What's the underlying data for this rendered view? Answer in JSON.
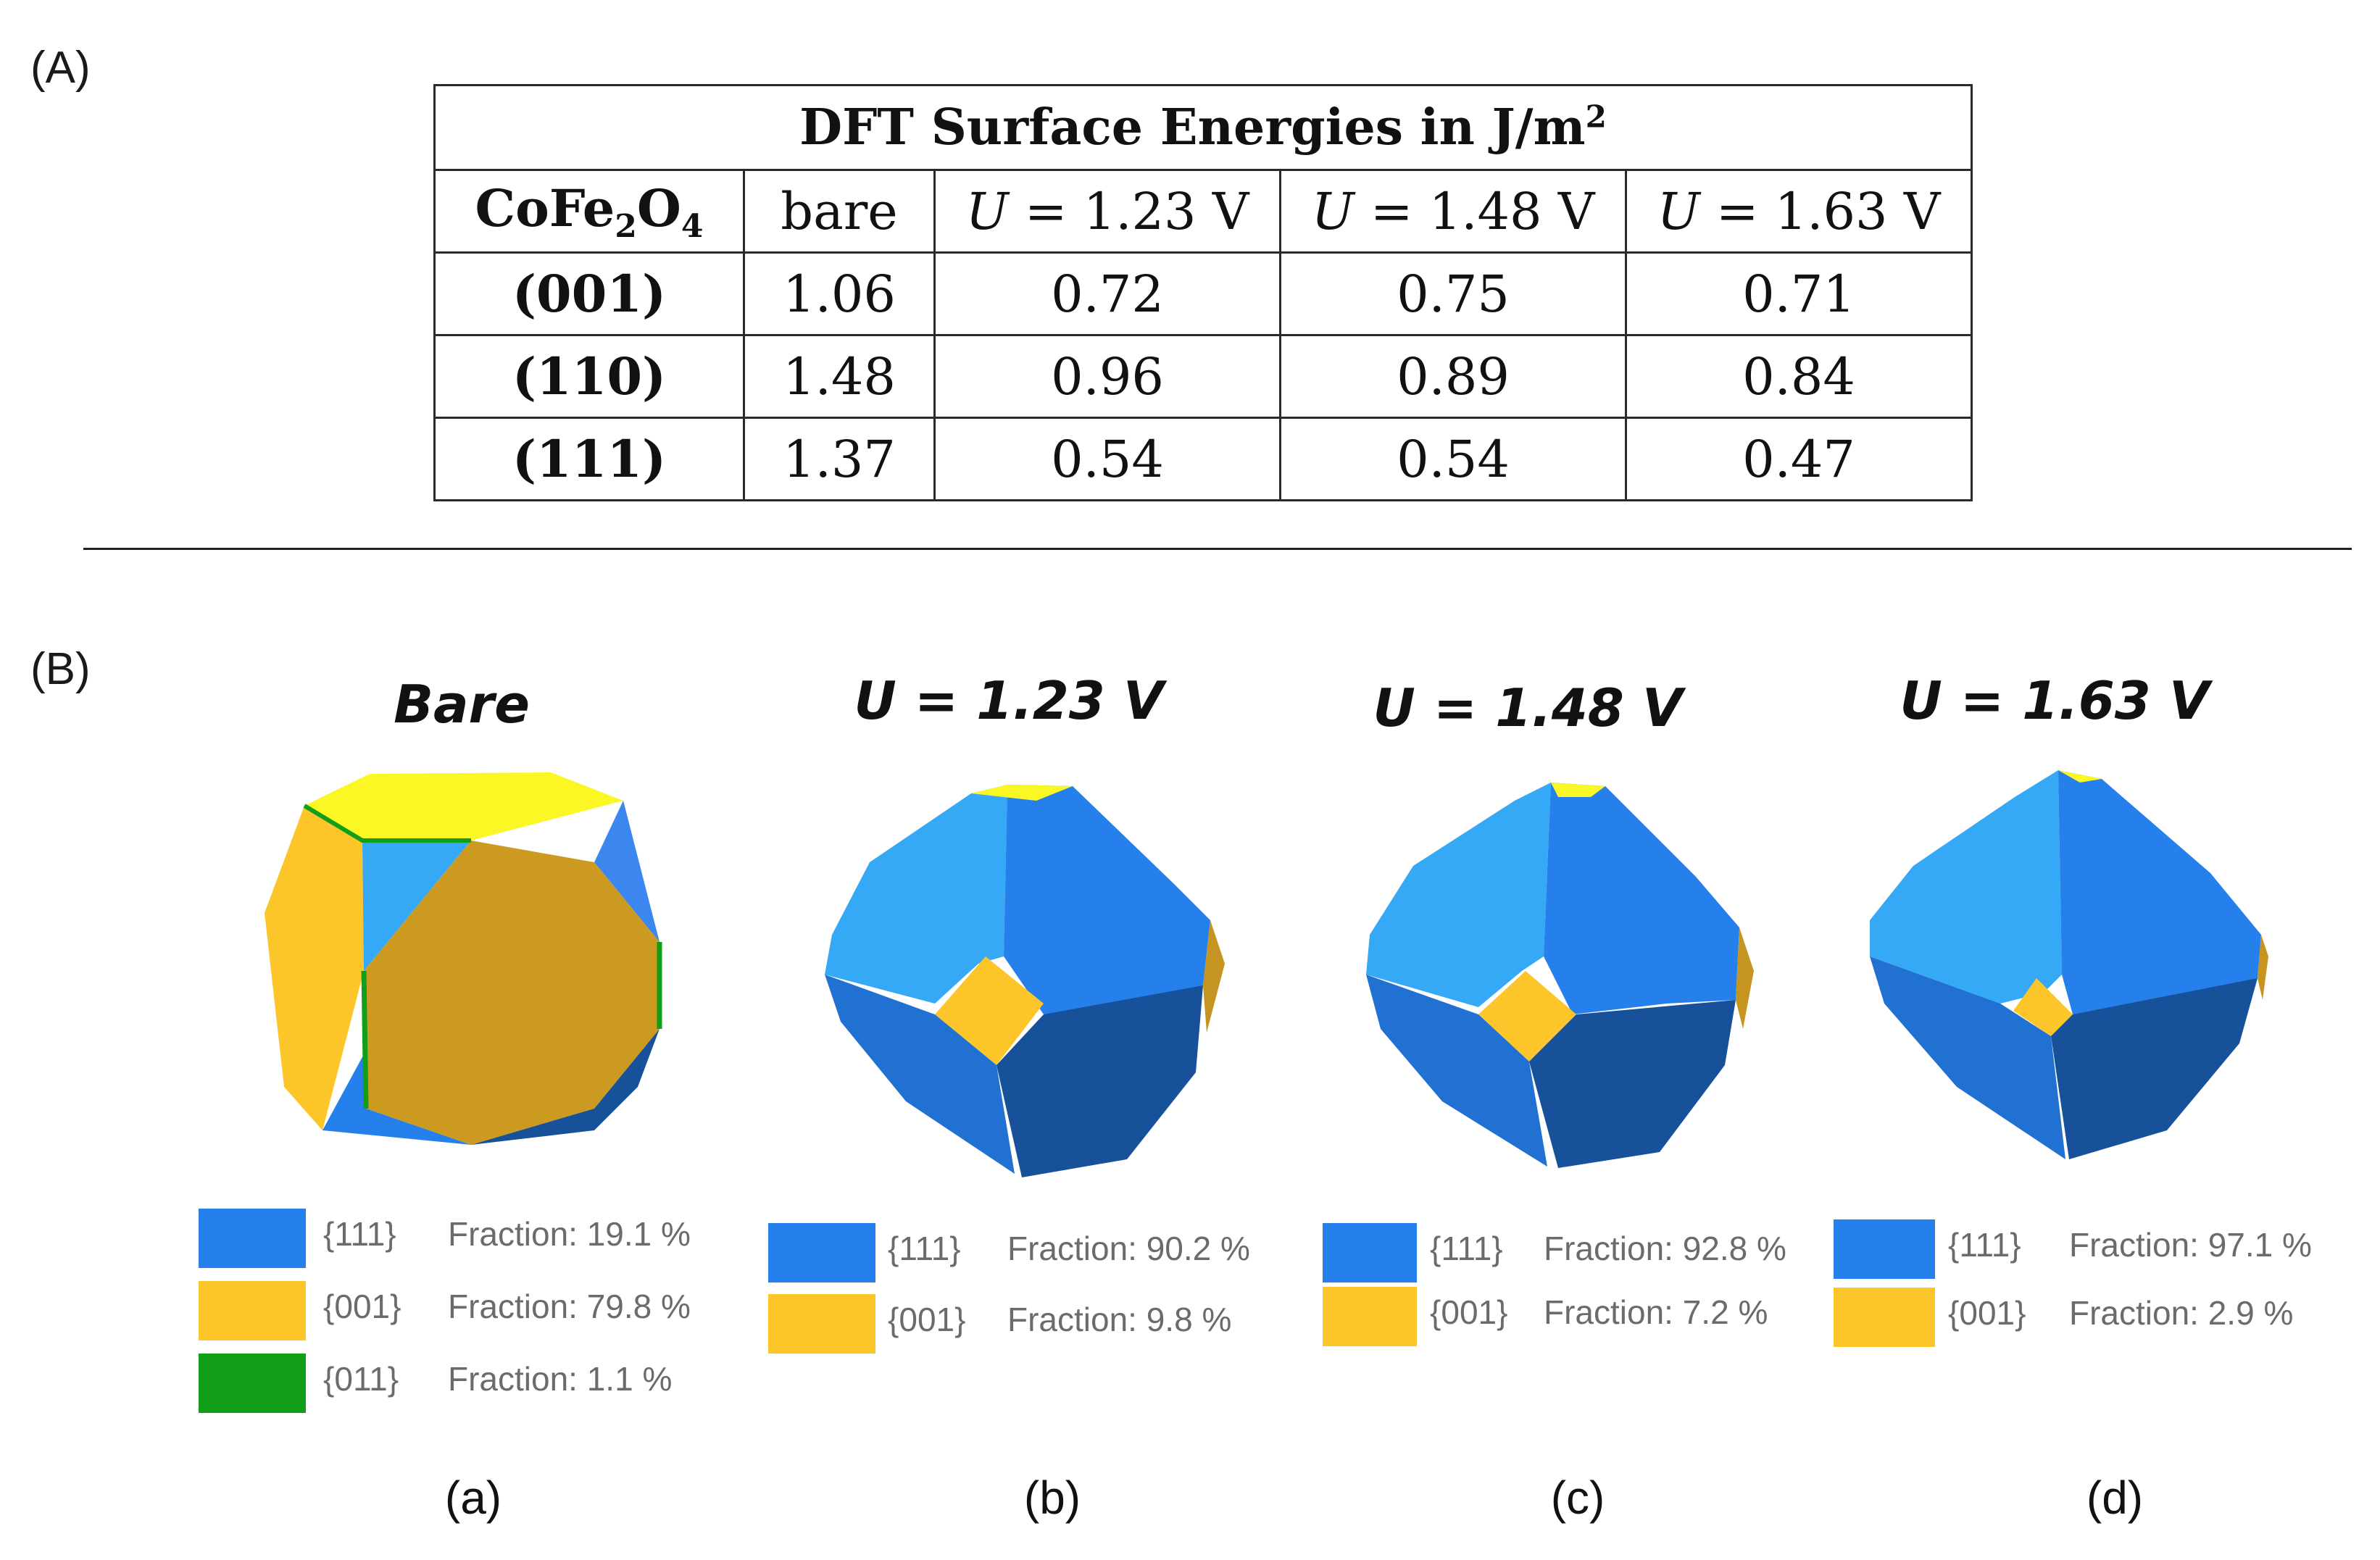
{
  "panel_labels": {
    "a_section": "(A)",
    "b_section": "(B)"
  },
  "table": {
    "title": "DFT Surface Energies in J/m",
    "title_sup": "2",
    "corner": {
      "pre": "CoFe",
      "sub1": "2",
      "mid": "O",
      "sub2": "4"
    },
    "columns": [
      {
        "label": "bare"
      },
      {
        "var": "U",
        "rest": " = 1.23 V"
      },
      {
        "var": "U",
        "rest": " = 1.48 V"
      },
      {
        "var": "U",
        "rest": " = 1.63 V"
      }
    ],
    "rows": [
      {
        "facet": "(001)",
        "values": [
          "1.06",
          "0.72",
          "0.75",
          "0.71"
        ]
      },
      {
        "facet": "(110)",
        "values": [
          "1.48",
          "0.96",
          "0.89",
          "0.84"
        ]
      },
      {
        "facet": "(111)",
        "values": [
          "1.37",
          "0.54",
          "0.54",
          "0.47"
        ]
      }
    ]
  },
  "colors": {
    "f111": "#2680ec",
    "f001": "#fcc62a",
    "f011": "#119e19"
  },
  "panels": [
    {
      "title": "Bare",
      "sub_label": "(a)",
      "legend": [
        {
          "facet": "{111}",
          "fraction": "Fraction: 19.1 %",
          "color": "#2680ec"
        },
        {
          "facet": "{001}",
          "fraction": "Fraction: 79.8 %",
          "color": "#fcc62a"
        },
        {
          "facet": "{011}",
          "fraction": "Fraction: 1.1 %",
          "color": "#119e19"
        }
      ]
    },
    {
      "title": "U = 1.23 V",
      "sub_label": "(b)",
      "legend": [
        {
          "facet": "{111}",
          "fraction": "Fraction: 90.2 %",
          "color": "#2680ec"
        },
        {
          "facet": "{001}",
          "fraction": "Fraction: 9.8 %",
          "color": "#fcc62a"
        }
      ]
    },
    {
      "title": "U = 1.48 V",
      "sub_label": "(c)",
      "legend": [
        {
          "facet": "{111}",
          "fraction": "Fraction: 92.8 %",
          "color": "#2680ec"
        },
        {
          "facet": "{001}",
          "fraction": "Fraction: 7.2 %",
          "color": "#fcc62a"
        }
      ]
    },
    {
      "title": "U = 1.63 V",
      "sub_label": "(d)",
      "legend": [
        {
          "facet": "{111}",
          "fraction": "Fraction: 97.1 %",
          "color": "#2680ec"
        },
        {
          "facet": "{001}",
          "fraction": "Fraction: 2.9 %",
          "color": "#fcc62a"
        }
      ]
    }
  ]
}
